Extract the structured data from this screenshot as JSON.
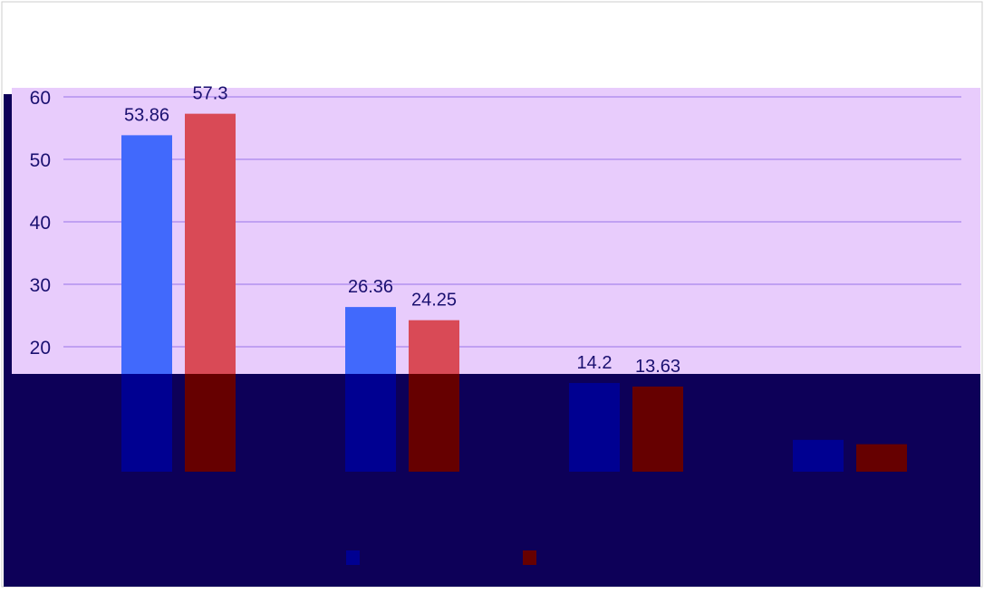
{
  "chart_data": {
    "type": "bar",
    "categories": [
      "",
      "",
      "",
      ""
    ],
    "series": [
      {
        "values": [
          53.86,
          26.36,
          14.2,
          5.1
        ],
        "data_labels": [
          "53.86",
          "26.36",
          "14.2",
          ""
        ]
      },
      {
        "values": [
          57.3,
          24.25,
          13.63,
          4.4
        ],
        "data_labels": [
          "57.3",
          "24.25",
          "13.63",
          ""
        ]
      }
    ],
    "y_ticks": [
      "20",
      "30",
      "40",
      "50",
      "60"
    ],
    "ylim": [
      0,
      60
    ],
    "grid": true,
    "legend": "bottom-center"
  },
  "colors": {
    "series_light": [
      "#4169fc",
      "#d94a56"
    ],
    "series_dark": [
      "#000091",
      "#660000"
    ],
    "panel_light": "#e8ccfc",
    "panel_dark": "#0d0058",
    "gridline": "#b392ee",
    "label_text": "#1a1070",
    "frame": "#cccccc"
  },
  "icons": {
    "legend_swatch": "square-swatch-icon"
  }
}
